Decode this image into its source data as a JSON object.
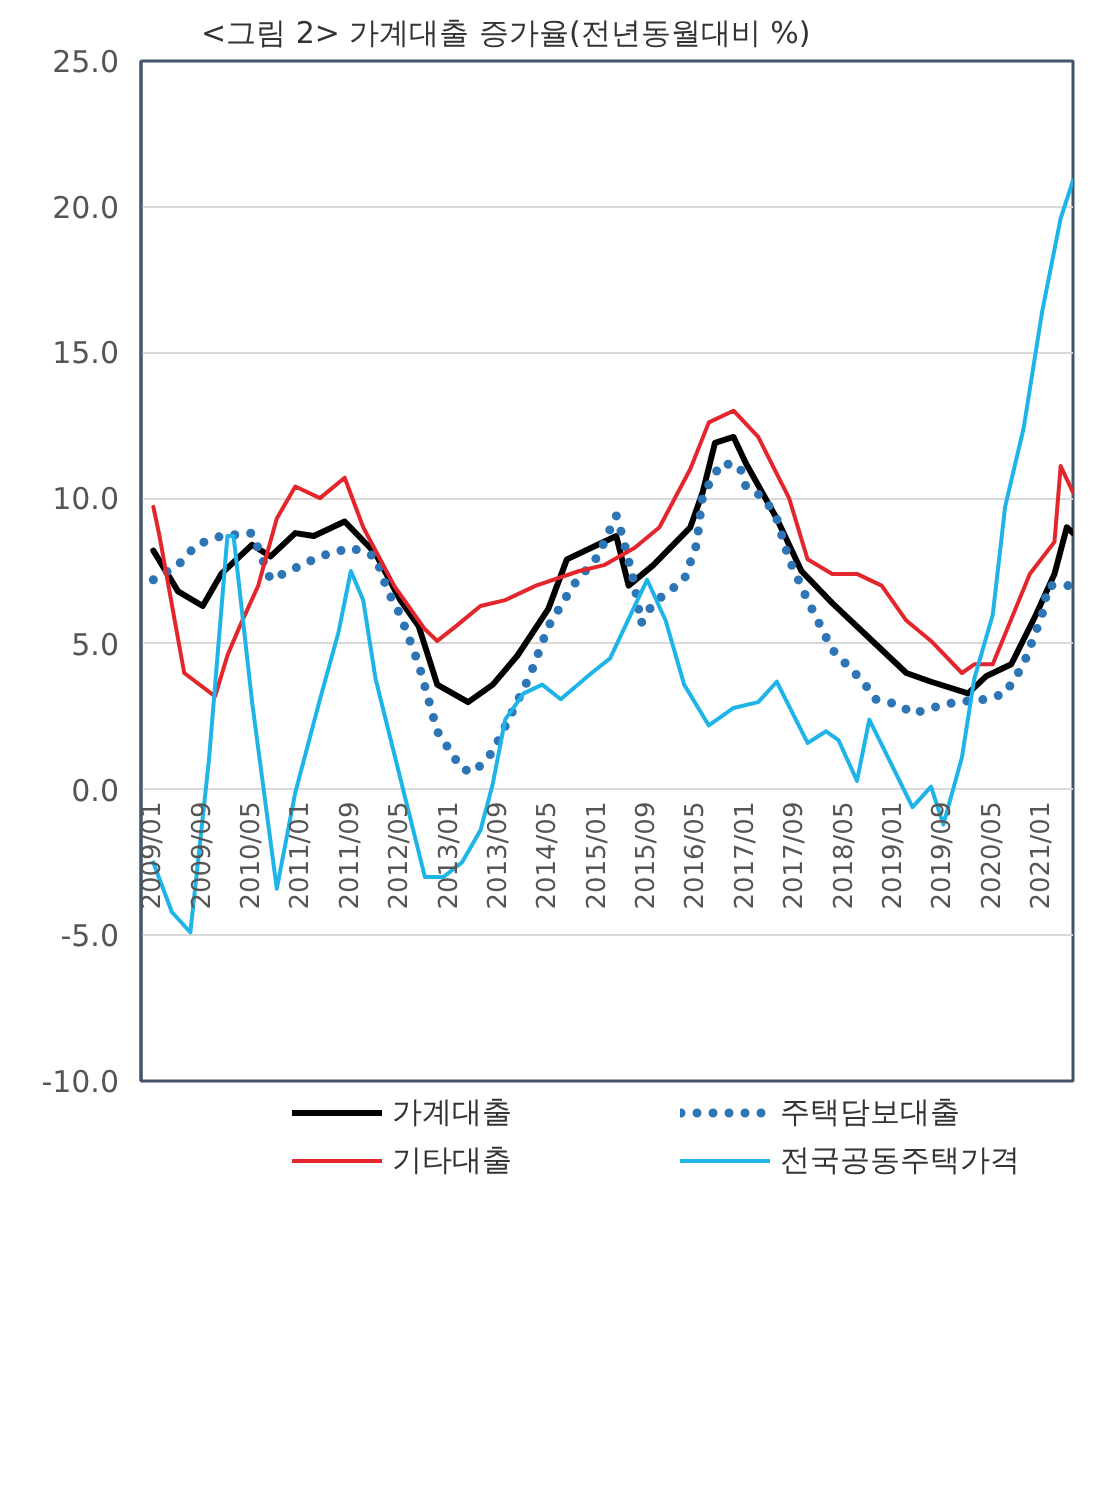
{
  "chart_data": {
    "type": "line",
    "title": "<그림 2> 가계대출 증가율(전년동월대비 %)",
    "xlim": [
      "2008-11",
      "2021-06"
    ],
    "xticks": [
      {
        "value": "2009-01",
        "label": "2009/01"
      },
      {
        "value": "2009-09",
        "label": "2009/09"
      },
      {
        "value": "2010-05",
        "label": "2010/05"
      },
      {
        "value": "2011-01",
        "label": "2011/01"
      },
      {
        "value": "2011-09",
        "label": "2011/09"
      },
      {
        "value": "2012-05",
        "label": "2012/05"
      },
      {
        "value": "2013-01",
        "label": "2013/01"
      },
      {
        "value": "2013-09",
        "label": "2013/09"
      },
      {
        "value": "2014-05",
        "label": "2014/05"
      },
      {
        "value": "2015-01",
        "label": "2015/01"
      },
      {
        "value": "2015-09",
        "label": "2015/09"
      },
      {
        "value": "2016-05",
        "label": "2016/05"
      },
      {
        "value": "2017-01",
        "label": "2017/01"
      },
      {
        "value": "2017-09",
        "label": "2017/09"
      },
      {
        "value": "2018-05",
        "label": "2018/05"
      },
      {
        "value": "2019-01",
        "label": "2019/01"
      },
      {
        "value": "2019-09",
        "label": "2019/09"
      },
      {
        "value": "2020-05",
        "label": "2020/05"
      },
      {
        "value": "2021-01",
        "label": "2021/01"
      }
    ],
    "ylim": [
      -10,
      25
    ],
    "yticks": [
      {
        "value": -10,
        "label": "-10.0"
      },
      {
        "value": -5,
        "label": "-5.0"
      },
      {
        "value": 0,
        "label": "0.0"
      },
      {
        "value": 5,
        "label": "5.0"
      },
      {
        "value": 10,
        "label": "10.0"
      },
      {
        "value": 15,
        "label": "15.0"
      },
      {
        "value": 20,
        "label": "20.0"
      },
      {
        "value": 25,
        "label": "25.0"
      }
    ],
    "grid": "y",
    "legend": "bottom",
    "series": [
      {
        "name": "가계대출",
        "color": "#000000",
        "line_style": "solid",
        "x": [
          "2009-01",
          "2009-05",
          "2009-09",
          "2009-12",
          "2010-05",
          "2010-08",
          "2010-12",
          "2011-03",
          "2011-08",
          "2012-01",
          "2012-05",
          "2012-08",
          "2012-11",
          "2013-04",
          "2013-08",
          "2013-12",
          "2014-05",
          "2014-08",
          "2015-01",
          "2015-04",
          "2015-06",
          "2015-10",
          "2016-04",
          "2016-06",
          "2016-08",
          "2016-11",
          "2017-01",
          "2017-06",
          "2017-10",
          "2018-03",
          "2018-08",
          "2019-03",
          "2019-07",
          "2020-01",
          "2020-04",
          "2020-08",
          "2020-12",
          "2021-03",
          "2021-05",
          "2021-06"
        ],
        "values": [
          8.2,
          6.8,
          6.3,
          7.4,
          8.4,
          8.0,
          8.8,
          8.7,
          9.2,
          8.1,
          6.5,
          5.6,
          3.6,
          3.0,
          3.6,
          4.6,
          6.2,
          7.9,
          8.4,
          8.7,
          7.0,
          7.7,
          9.0,
          10.2,
          11.9,
          12.1,
          11.2,
          9.3,
          7.5,
          6.4,
          5.4,
          4.0,
          3.7,
          3.3,
          3.9,
          4.3,
          6.0,
          7.4,
          9.0,
          8.8
        ]
      },
      {
        "name": "주택담보대출",
        "color": "#2e75b6",
        "line_style": "dotted",
        "x": [
          "2009-01",
          "2009-05",
          "2009-08",
          "2009-12",
          "2010-05",
          "2010-08",
          "2010-12",
          "2011-04",
          "2011-09",
          "2012-01",
          "2012-03",
          "2012-05",
          "2012-08",
          "2012-11",
          "2013-03",
          "2013-05",
          "2013-08",
          "2013-11",
          "2014-02",
          "2014-05",
          "2014-09",
          "2015-01",
          "2015-04",
          "2015-05",
          "2015-07",
          "2015-08",
          "2015-10",
          "2016-03",
          "2016-05",
          "2016-06",
          "2016-09",
          "2016-12",
          "2017-01",
          "2017-04",
          "2017-06",
          "2017-08",
          "2017-11",
          "2018-03",
          "2018-08",
          "2018-10",
          "2019-02",
          "2019-04",
          "2019-07",
          "2019-11",
          "2020-04",
          "2020-07",
          "2020-10",
          "2021-01",
          "2021-02",
          "2021-04",
          "2021-06"
        ],
        "values": [
          7.2,
          7.7,
          8.4,
          8.7,
          8.8,
          7.2,
          7.6,
          8.0,
          8.3,
          8.0,
          6.8,
          6.0,
          4.3,
          2.0,
          0.7,
          0.6,
          1.3,
          2.6,
          3.9,
          5.6,
          7.0,
          8.0,
          9.4,
          8.7,
          7.0,
          5.7,
          6.4,
          7.2,
          8.4,
          10.1,
          11.2,
          11.1,
          10.4,
          10.0,
          9.3,
          7.9,
          6.5,
          4.8,
          3.7,
          3.1,
          2.9,
          2.6,
          2.8,
          3.0,
          3.1,
          3.3,
          4.3,
          6.0,
          7.0,
          7.0,
          7.0
        ]
      },
      {
        "name": "기타대출",
        "color": "#e3262c",
        "line_style": "solid",
        "x": [
          "2009-01",
          "2009-02",
          "2009-06",
          "2009-11",
          "2010-01",
          "2010-03",
          "2010-06",
          "2010-09",
          "2010-12",
          "2011-04",
          "2011-08",
          "2011-11",
          "2012-04",
          "2012-09",
          "2012-11",
          "2013-02",
          "2013-06",
          "2013-10",
          "2014-03",
          "2014-10",
          "2015-02",
          "2015-07",
          "2015-11",
          "2016-04",
          "2016-07",
          "2016-11",
          "2017-03",
          "2017-08",
          "2017-11",
          "2018-03",
          "2018-07",
          "2018-11",
          "2019-03",
          "2019-07",
          "2019-12",
          "2020-02",
          "2020-05",
          "2020-11",
          "2021-03",
          "2021-04",
          "2021-06"
        ],
        "values": [
          9.7,
          8.7,
          4.0,
          3.2,
          4.6,
          5.6,
          7.0,
          9.3,
          10.4,
          10.0,
          10.7,
          9.0,
          7.0,
          5.5,
          5.1,
          5.6,
          6.3,
          6.5,
          7.0,
          7.5,
          7.7,
          8.3,
          9.0,
          11.0,
          12.6,
          13.0,
          12.1,
          10.0,
          7.9,
          7.4,
          7.4,
          7.0,
          5.8,
          5.1,
          4.0,
          4.3,
          4.3,
          7.4,
          8.5,
          11.1,
          10.2
        ]
      },
      {
        "name": "전국공동주택가격",
        "color": "#1eb4e8",
        "line_style": "solid",
        "x": [
          "2009-01",
          "2009-04",
          "2009-07",
          "2009-10",
          "2010-01",
          "2010-02",
          "2010-05",
          "2010-09",
          "2010-12",
          "2011-04",
          "2011-07",
          "2011-09",
          "2011-11",
          "2012-01",
          "2012-05",
          "2012-09",
          "2012-12",
          "2013-03",
          "2013-06",
          "2013-08",
          "2013-10",
          "2014-01",
          "2014-04",
          "2014-07",
          "2014-12",
          "2015-03",
          "2015-07",
          "2015-09",
          "2015-12",
          "2016-03",
          "2016-07",
          "2016-11",
          "2017-03",
          "2017-06",
          "2017-11",
          "2018-02",
          "2018-04",
          "2018-07",
          "2018-09",
          "2019-04",
          "2019-07",
          "2019-09",
          "2019-12",
          "2020-02",
          "2020-05",
          "2020-07",
          "2020-10",
          "2021-01",
          "2021-04",
          "2021-06"
        ],
        "values": [
          -2.5,
          -4.2,
          -4.9,
          1.0,
          8.7,
          8.7,
          3.0,
          -3.4,
          -0.1,
          3.1,
          5.4,
          7.5,
          6.5,
          3.8,
          0.4,
          -3.0,
          -3.0,
          -2.5,
          -1.4,
          0.2,
          2.4,
          3.3,
          3.6,
          3.1,
          4.0,
          4.5,
          6.3,
          7.2,
          5.8,
          3.6,
          2.2,
          2.8,
          3.0,
          3.7,
          1.6,
          2.0,
          1.7,
          0.3,
          2.4,
          -0.6,
          0.1,
          -1.2,
          1.1,
          3.8,
          6.0,
          9.7,
          12.4,
          16.4,
          19.6,
          20.9
        ]
      }
    ]
  }
}
